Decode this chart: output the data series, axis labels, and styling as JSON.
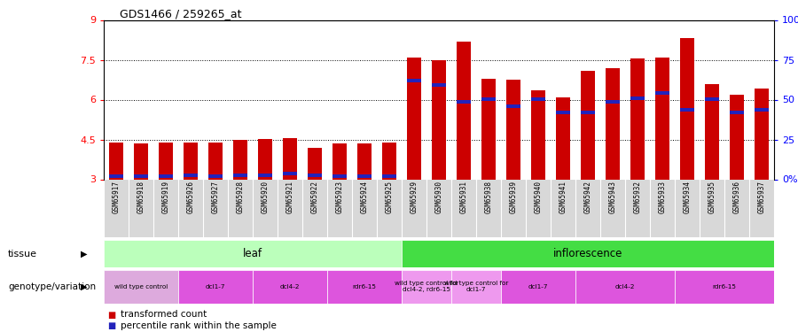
{
  "title": "GDS1466 / 259265_at",
  "samples": [
    "GSM65917",
    "GSM65918",
    "GSM65919",
    "GSM65926",
    "GSM65927",
    "GSM65928",
    "GSM65920",
    "GSM65921",
    "GSM65922",
    "GSM65923",
    "GSM65924",
    "GSM65925",
    "GSM65929",
    "GSM65930",
    "GSM65931",
    "GSM65938",
    "GSM65939",
    "GSM65940",
    "GSM65941",
    "GSM65942",
    "GSM65943",
    "GSM65932",
    "GSM65933",
    "GSM65934",
    "GSM65935",
    "GSM65936",
    "GSM65937"
  ],
  "bar_values": [
    4.4,
    4.35,
    4.4,
    4.38,
    4.4,
    4.5,
    4.52,
    4.55,
    4.2,
    4.35,
    4.35,
    4.4,
    7.6,
    7.5,
    8.2,
    6.8,
    6.75,
    6.35,
    6.1,
    7.1,
    7.2,
    7.55,
    7.6,
    8.3,
    6.6,
    6.2,
    6.4
  ],
  "percentile_values": [
    3.05,
    3.05,
    3.05,
    3.1,
    3.05,
    3.1,
    3.1,
    3.15,
    3.1,
    3.05,
    3.05,
    3.05,
    6.65,
    6.5,
    5.85,
    5.95,
    5.7,
    5.95,
    5.45,
    5.45,
    5.85,
    6.0,
    6.2,
    5.55,
    5.95,
    5.45,
    5.55
  ],
  "ymin": 3.0,
  "ymax": 9.0,
  "yticks": [
    3.0,
    4.5,
    6.0,
    7.5,
    9.0
  ],
  "ytick_labels": [
    "3",
    "4.5",
    "6",
    "7.5",
    "9"
  ],
  "y2ticks_pct": [
    0,
    25,
    50,
    75,
    100
  ],
  "y2tick_labels": [
    "0%",
    "25",
    "50",
    "75",
    "100%"
  ],
  "dotted_lines": [
    4.5,
    6.0,
    7.5
  ],
  "bar_color": "#cc0000",
  "percentile_color": "#2222bb",
  "bar_width": 0.55,
  "tissue_groups": [
    {
      "label": "leaf",
      "start": 0,
      "end": 11,
      "color": "#bbffbb"
    },
    {
      "label": "inflorescence",
      "start": 12,
      "end": 26,
      "color": "#44dd44"
    }
  ],
  "genotype_groups": [
    {
      "label": "wild type control",
      "start": 0,
      "end": 2,
      "color": "#ddaadd"
    },
    {
      "label": "dcl1-7",
      "start": 3,
      "end": 5,
      "color": "#dd55dd"
    },
    {
      "label": "dcl4-2",
      "start": 6,
      "end": 8,
      "color": "#dd55dd"
    },
    {
      "label": "rdr6-15",
      "start": 9,
      "end": 11,
      "color": "#dd55dd"
    },
    {
      "label": "wild type control for\ndcl4-2, rdr6-15",
      "start": 12,
      "end": 13,
      "color": "#ee99ee"
    },
    {
      "label": "wild type control for\ndcl1-7",
      "start": 14,
      "end": 15,
      "color": "#ee99ee"
    },
    {
      "label": "dcl1-7",
      "start": 16,
      "end": 18,
      "color": "#dd55dd"
    },
    {
      "label": "dcl4-2",
      "start": 19,
      "end": 22,
      "color": "#dd55dd"
    },
    {
      "label": "rdr6-15",
      "start": 23,
      "end": 26,
      "color": "#dd55dd"
    }
  ]
}
